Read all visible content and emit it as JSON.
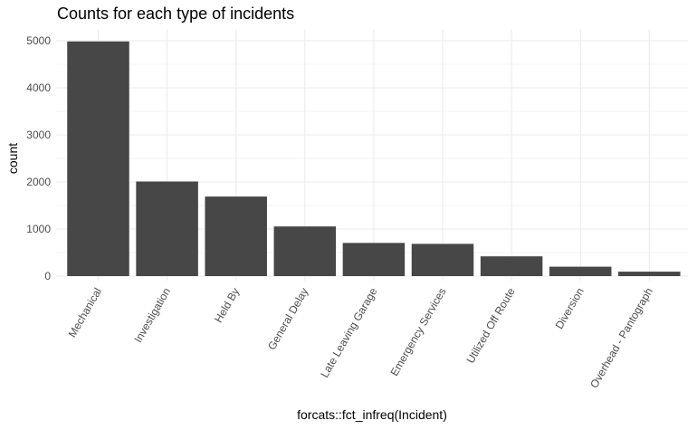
{
  "chart_data": {
    "type": "bar",
    "title": "Counts for each type of incidents",
    "xlabel": "forcats::fct_infreq(Incident)",
    "ylabel": "count",
    "categories": [
      "Mechanical",
      "Investigation",
      "Held By",
      "General Delay",
      "Late Leaving Garage",
      "Emergency Services",
      "Utilized Off Route",
      "Diversion",
      "Overhead - Pantograph"
    ],
    "values": [
      4985,
      2010,
      1690,
      1055,
      705,
      685,
      420,
      200,
      95
    ],
    "ylim": [
      0,
      5300
    ],
    "yticks": [
      0,
      1000,
      2000,
      3000,
      4000,
      5000
    ],
    "grid": true,
    "bar_color": "#474747",
    "grid_color": "#ebebeb"
  }
}
